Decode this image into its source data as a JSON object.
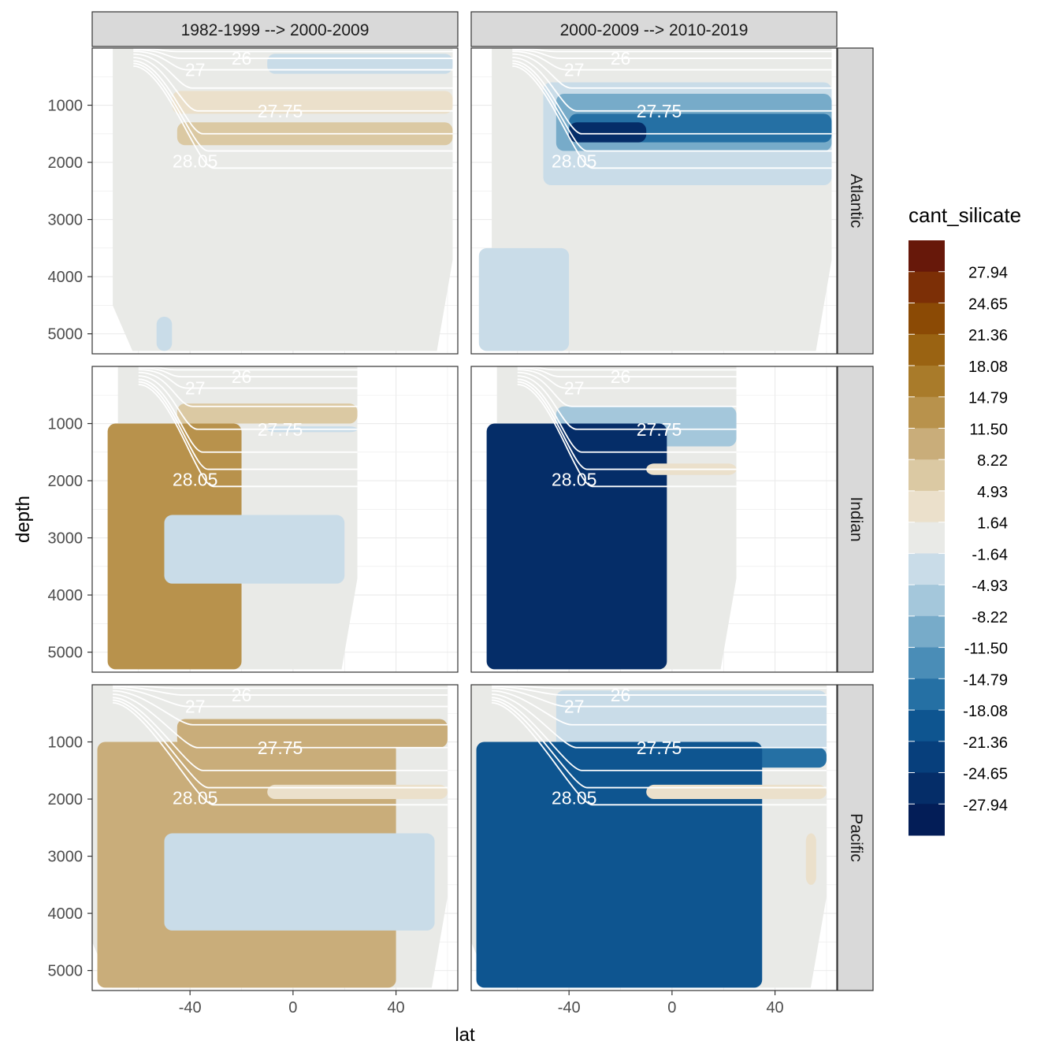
{
  "chart_data": {
    "type": "heatmap",
    "variable": "cant_silicate",
    "xlabel": "lat",
    "ylabel": "depth",
    "x_ticks": [
      -40,
      0,
      40
    ],
    "xlim": [
      -78,
      64
    ],
    "y_ticks": [
      1000,
      2000,
      3000,
      4000,
      5000
    ],
    "ylim": [
      0,
      5350
    ],
    "y_reversed": true,
    "columns": [
      "1982-1999 --> 2000-2009",
      "2000-2009 --> 2010-2019"
    ],
    "rows": [
      "Atlantic",
      "Indian",
      "Pacific"
    ],
    "legend": {
      "title": "cant_silicate",
      "position": "right",
      "labels": [
        "27.94",
        "24.65",
        "21.36",
        "18.08",
        "14.79",
        "11.50",
        "8.22",
        "4.93",
        "1.64",
        "-1.64",
        "-4.93",
        "-8.22",
        "-11.50",
        "-14.79",
        "-18.08",
        "-21.36",
        "-24.65",
        "-27.94"
      ],
      "colors": [
        "#67180a",
        "#7c2f06",
        "#8b4a05",
        "#9a6312",
        "#a97b2a",
        "#b8924c",
        "#c9ad7a",
        "#dbc9a3",
        "#ebe0cb",
        "#e9eae7",
        "#c9dce8",
        "#a4c7db",
        "#77abc9",
        "#4a8db7",
        "#2570a4",
        "#0e5590",
        "#073f7c",
        "#052d68",
        "#031d57"
      ]
    },
    "isopycnal_labels": [
      "26",
      "27",
      "27.75",
      "28.05"
    ],
    "isopycnal_label_positions": [
      {
        "lat": -20,
        "depth": 180
      },
      {
        "lat": -38,
        "depth": 380
      },
      {
        "lat": -5,
        "depth": 1100
      },
      {
        "lat": -38,
        "depth": 1980
      }
    ],
    "panels": [
      {
        "column": 0,
        "row": "Atlantic",
        "lat_range": [
          -70,
          62
        ],
        "max_depth": 5300,
        "regions": [
          {
            "lat_range": [
              -47,
              62
            ],
            "depth_range": [
              750,
              1150
            ],
            "value": 3.3
          },
          {
            "lat_range": [
              -45,
              62
            ],
            "depth_range": [
              1300,
              1700
            ],
            "value": 6.6
          },
          {
            "lat_range": [
              -10,
              62
            ],
            "depth_range": [
              100,
              450
            ],
            "value": -3.3
          },
          {
            "lat_range": [
              -53,
              -47
            ],
            "depth_range": [
              4700,
              5300
            ],
            "value": -3.3
          }
        ]
      },
      {
        "column": 1,
        "row": "Atlantic",
        "lat_range": [
          -70,
          62
        ],
        "max_depth": 5300,
        "regions": [
          {
            "lat_range": [
              -50,
              62
            ],
            "depth_range": [
              600,
              2400
            ],
            "value": -3.3
          },
          {
            "lat_range": [
              -45,
              62
            ],
            "depth_range": [
              800,
              1800
            ],
            "value": -9.9
          },
          {
            "lat_range": [
              -40,
              62
            ],
            "depth_range": [
              1150,
              1650
            ],
            "value": -16.4
          },
          {
            "lat_range": [
              -40,
              -10
            ],
            "depth_range": [
              1300,
              1650
            ],
            "value": -24.7
          },
          {
            "lat_range": [
              -75,
              -40
            ],
            "depth_range": [
              3500,
              5300
            ],
            "value": -3.3
          }
        ]
      },
      {
        "column": 0,
        "row": "Indian",
        "lat_range": [
          -68,
          25
        ],
        "max_depth": 5300,
        "regions": [
          {
            "lat_range": [
              -45,
              25
            ],
            "depth_range": [
              650,
              1000
            ],
            "value": 6.6
          },
          {
            "lat_range": [
              -72,
              -20
            ],
            "depth_range": [
              1000,
              5300
            ],
            "value": 11.5
          },
          {
            "lat_range": [
              -50,
              20
            ],
            "depth_range": [
              2600,
              3800
            ],
            "value": -3.3
          },
          {
            "lat_range": [
              -10,
              25
            ],
            "depth_range": [
              1050,
              1150
            ],
            "value": -3.3
          }
        ]
      },
      {
        "column": 1,
        "row": "Indian",
        "lat_range": [
          -68,
          25
        ],
        "max_depth": 5300,
        "regions": [
          {
            "lat_range": [
              -45,
              25
            ],
            "depth_range": [
              700,
              1400
            ],
            "value": -6.6
          },
          {
            "lat_range": [
              -72,
              -2
            ],
            "depth_range": [
              1000,
              5300
            ],
            "value": -24.7
          },
          {
            "lat_range": [
              -10,
              25
            ],
            "depth_range": [
              1700,
              1900
            ],
            "value": 3.3
          }
        ]
      },
      {
        "column": 0,
        "row": "Pacific",
        "lat_range": [
          -78,
          60
        ],
        "max_depth": 5300,
        "regions": [
          {
            "lat_range": [
              -45,
              60
            ],
            "depth_range": [
              600,
              1100
            ],
            "value": 9.9
          },
          {
            "lat_range": [
              -76,
              40
            ],
            "depth_range": [
              1000,
              5300
            ],
            "value": 9.9
          },
          {
            "lat_range": [
              -50,
              55
            ],
            "depth_range": [
              2600,
              4300
            ],
            "value": -3.3
          },
          {
            "lat_range": [
              -10,
              60
            ],
            "depth_range": [
              1750,
              2000
            ],
            "value": 3.3
          }
        ]
      },
      {
        "column": 1,
        "row": "Pacific",
        "lat_range": [
          -78,
          60
        ],
        "max_depth": 5300,
        "regions": [
          {
            "lat_range": [
              -45,
              60
            ],
            "depth_range": [
              100,
              1400
            ],
            "value": -3.3
          },
          {
            "lat_range": [
              -30,
              60
            ],
            "depth_range": [
              1100,
              1450
            ],
            "value": -16.4
          },
          {
            "lat_range": [
              -76,
              35
            ],
            "depth_range": [
              1000,
              5300
            ],
            "value": -19.7
          },
          {
            "lat_range": [
              -10,
              60
            ],
            "depth_range": [
              1750,
              2000
            ],
            "value": 3.3
          },
          {
            "lat_range": [
              52,
              56
            ],
            "depth_range": [
              2600,
              3500
            ],
            "value": 3.3
          }
        ]
      }
    ]
  }
}
